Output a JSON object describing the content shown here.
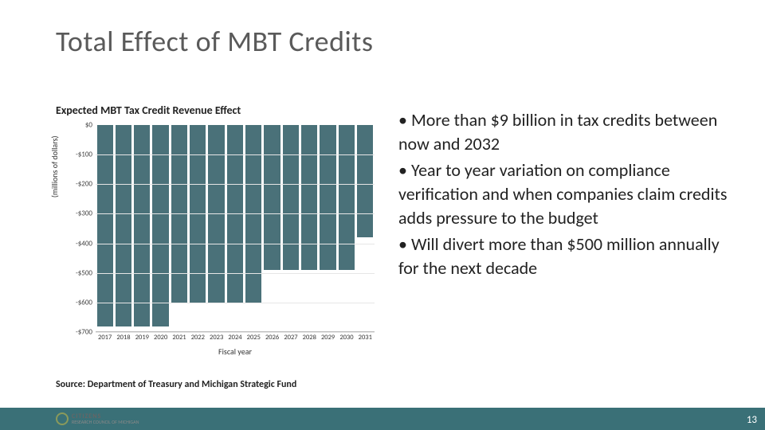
{
  "title": "Total Effect of MBT Credits",
  "chart": {
    "type": "bar",
    "title": "Expected MBT Tax Credit Revenue Effect",
    "y_label": "(millions of dollars)",
    "x_label": "Fiscal year",
    "ylim_min": -700,
    "ylim_max": 0,
    "y_ticks": [
      {
        "value": 0,
        "label": "$0"
      },
      {
        "value": -100,
        "label": "-$100"
      },
      {
        "value": -200,
        "label": "-$200"
      },
      {
        "value": -300,
        "label": "-$300"
      },
      {
        "value": -400,
        "label": "-$400"
      },
      {
        "value": -500,
        "label": "-$500"
      },
      {
        "value": -600,
        "label": "-$600"
      },
      {
        "value": -700,
        "label": "-$700"
      }
    ],
    "categories": [
      "2017",
      "2018",
      "2019",
      "2020",
      "2021",
      "2022",
      "2023",
      "2024",
      "2025",
      "2026",
      "2027",
      "2028",
      "2029",
      "2030",
      "2031"
    ],
    "values": [
      -680,
      -680,
      -680,
      -680,
      -600,
      -600,
      -600,
      -600,
      -600,
      -490,
      -490,
      -490,
      -490,
      -490,
      -380
    ],
    "bar_color": "#4a7179",
    "grid_color": "#e6e6e6",
    "axis_color": "#bbbbbb",
    "tick_fontsize": 9,
    "label_fontsize": 10,
    "title_fontsize": 14,
    "background_color": "#ffffff",
    "bar_gap_ratio": 0.12
  },
  "bullets": [
    "More than $9 billion in tax credits between now and 2032",
    "Year to year variation on compliance verification and when companies claim credits adds pressure to the budget",
    "Will divert more than $500 million annually for the next decade"
  ],
  "source": "Source: Department of Treasury and Michigan Strategic Fund",
  "logo": {
    "line1": "CITIZENS",
    "line2": "RESEARCH COUNCIL OF MICHIGAN"
  },
  "page_number": "13",
  "footer_color": "#3a7077"
}
